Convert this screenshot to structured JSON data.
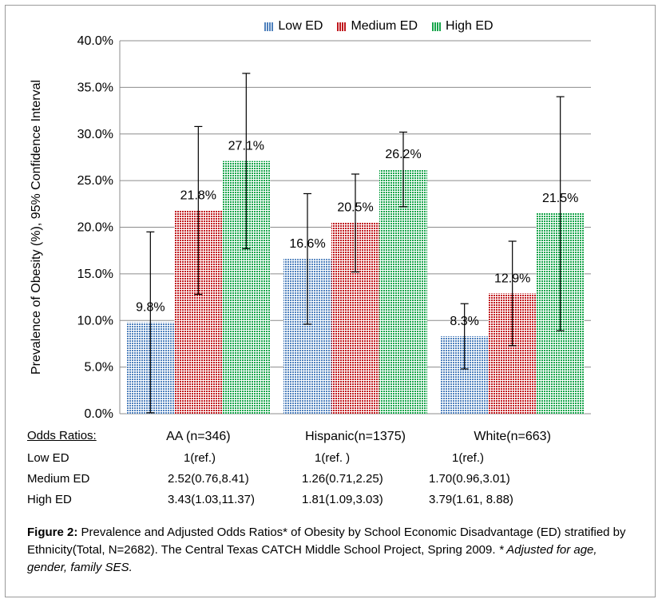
{
  "chart_data": {
    "type": "bar",
    "categories": [
      "AA (n=346)",
      "Hispanic(n=1375)",
      "White(n=663)"
    ],
    "series": [
      {
        "name": "Low ED",
        "color": "#4f81bd",
        "values": [
          9.8,
          16.6,
          8.3
        ],
        "ci_low": [
          0.1,
          9.6,
          4.8
        ],
        "ci_high": [
          19.5,
          23.6,
          11.8
        ]
      },
      {
        "name": "Medium ED",
        "color": "#c0171c",
        "values": [
          21.8,
          20.5,
          12.9
        ],
        "ci_low": [
          12.8,
          15.2,
          7.3
        ],
        "ci_high": [
          30.8,
          25.7,
          18.5
        ]
      },
      {
        "name": "High ED",
        "color": "#17a54b",
        "values": [
          27.1,
          26.2,
          21.5
        ],
        "ci_low": [
          17.7,
          22.2,
          8.9
        ],
        "ci_high": [
          36.5,
          30.2,
          34.0
        ]
      }
    ],
    "data_labels": [
      [
        "9.8%",
        "16.6%",
        "8.3%"
      ],
      [
        "21.8%",
        "20.5%",
        "12.9%"
      ],
      [
        "27.1%",
        "26.2%",
        "21.5%"
      ]
    ],
    "ylabel": "Prevalence of Obesity (%), 95% Confidence Interval",
    "ylim": [
      0,
      40
    ],
    "yticks": [
      "0.0%",
      "5.0%",
      "10.0%",
      "15.0%",
      "20.0%",
      "25.0%",
      "30.0%",
      "35.0%",
      "40.0%"
    ],
    "grid": true,
    "legend_position": "top"
  },
  "odds_table": {
    "header": "Odds Ratios:",
    "rows": [
      {
        "label": "Low ED",
        "values": [
          "1(ref.)",
          "1(ref. )",
          "1(ref.)"
        ]
      },
      {
        "label": "Medium ED",
        "values": [
          "2.52(0.76,8.41)",
          "1.26(0.71,2.25)",
          "1.70(0.96,3.01)"
        ]
      },
      {
        "label": "High ED",
        "values": [
          "3.43(1.03,11.37)",
          "1.81(1.09,3.03)",
          "3.79(1.61, 8.88)"
        ]
      }
    ]
  },
  "caption": {
    "bold": "Figure 2:",
    "text": " Prevalence and Adjusted Odds Ratios* of Obesity by School Economic Disadvantage (ED) stratified by Ethnicity(Total, N=2682). The Central Texas CATCH Middle School Project, Spring 2009.",
    "italic": "* Adjusted for age, gender, family SES."
  }
}
